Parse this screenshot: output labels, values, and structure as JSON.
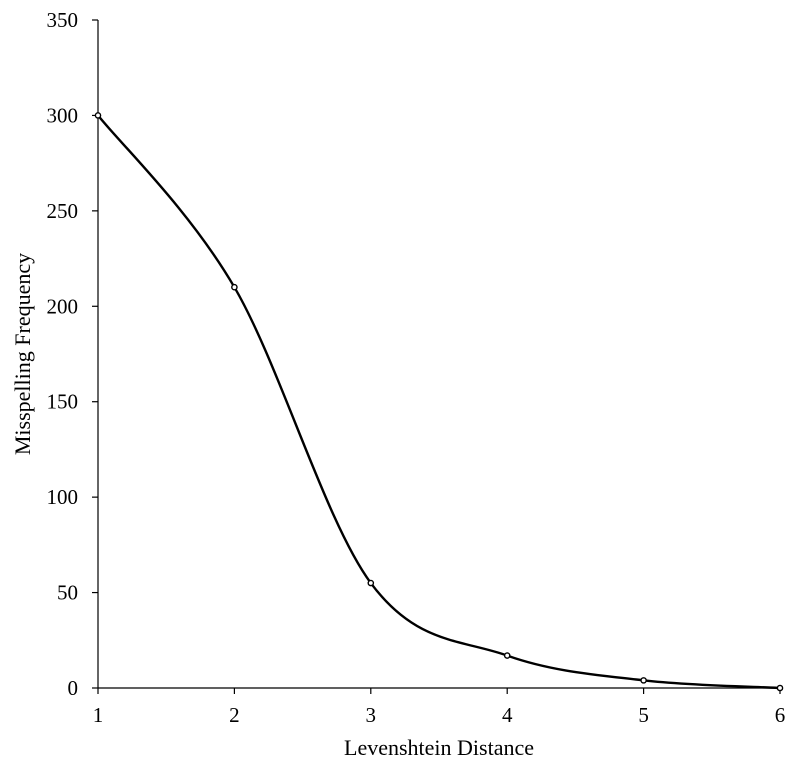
{
  "chart_data": {
    "type": "line",
    "smooth": true,
    "title": "",
    "xlabel": "Levenshtein Distance",
    "ylabel": "Misspelling Frequency",
    "x": [
      1,
      2,
      3,
      4,
      5,
      6
    ],
    "series": [
      {
        "values": [
          300,
          210,
          55,
          17,
          4,
          0
        ]
      }
    ],
    "xlim": [
      1,
      6
    ],
    "ylim": [
      0,
      350
    ],
    "x_ticks": [
      1,
      2,
      3,
      4,
      5,
      6
    ],
    "y_ticks": [
      0,
      50,
      100,
      150,
      200,
      250,
      300,
      350
    ],
    "grid": false,
    "legend": "none",
    "line_color": "#000000",
    "marker": "hollow-circle"
  }
}
